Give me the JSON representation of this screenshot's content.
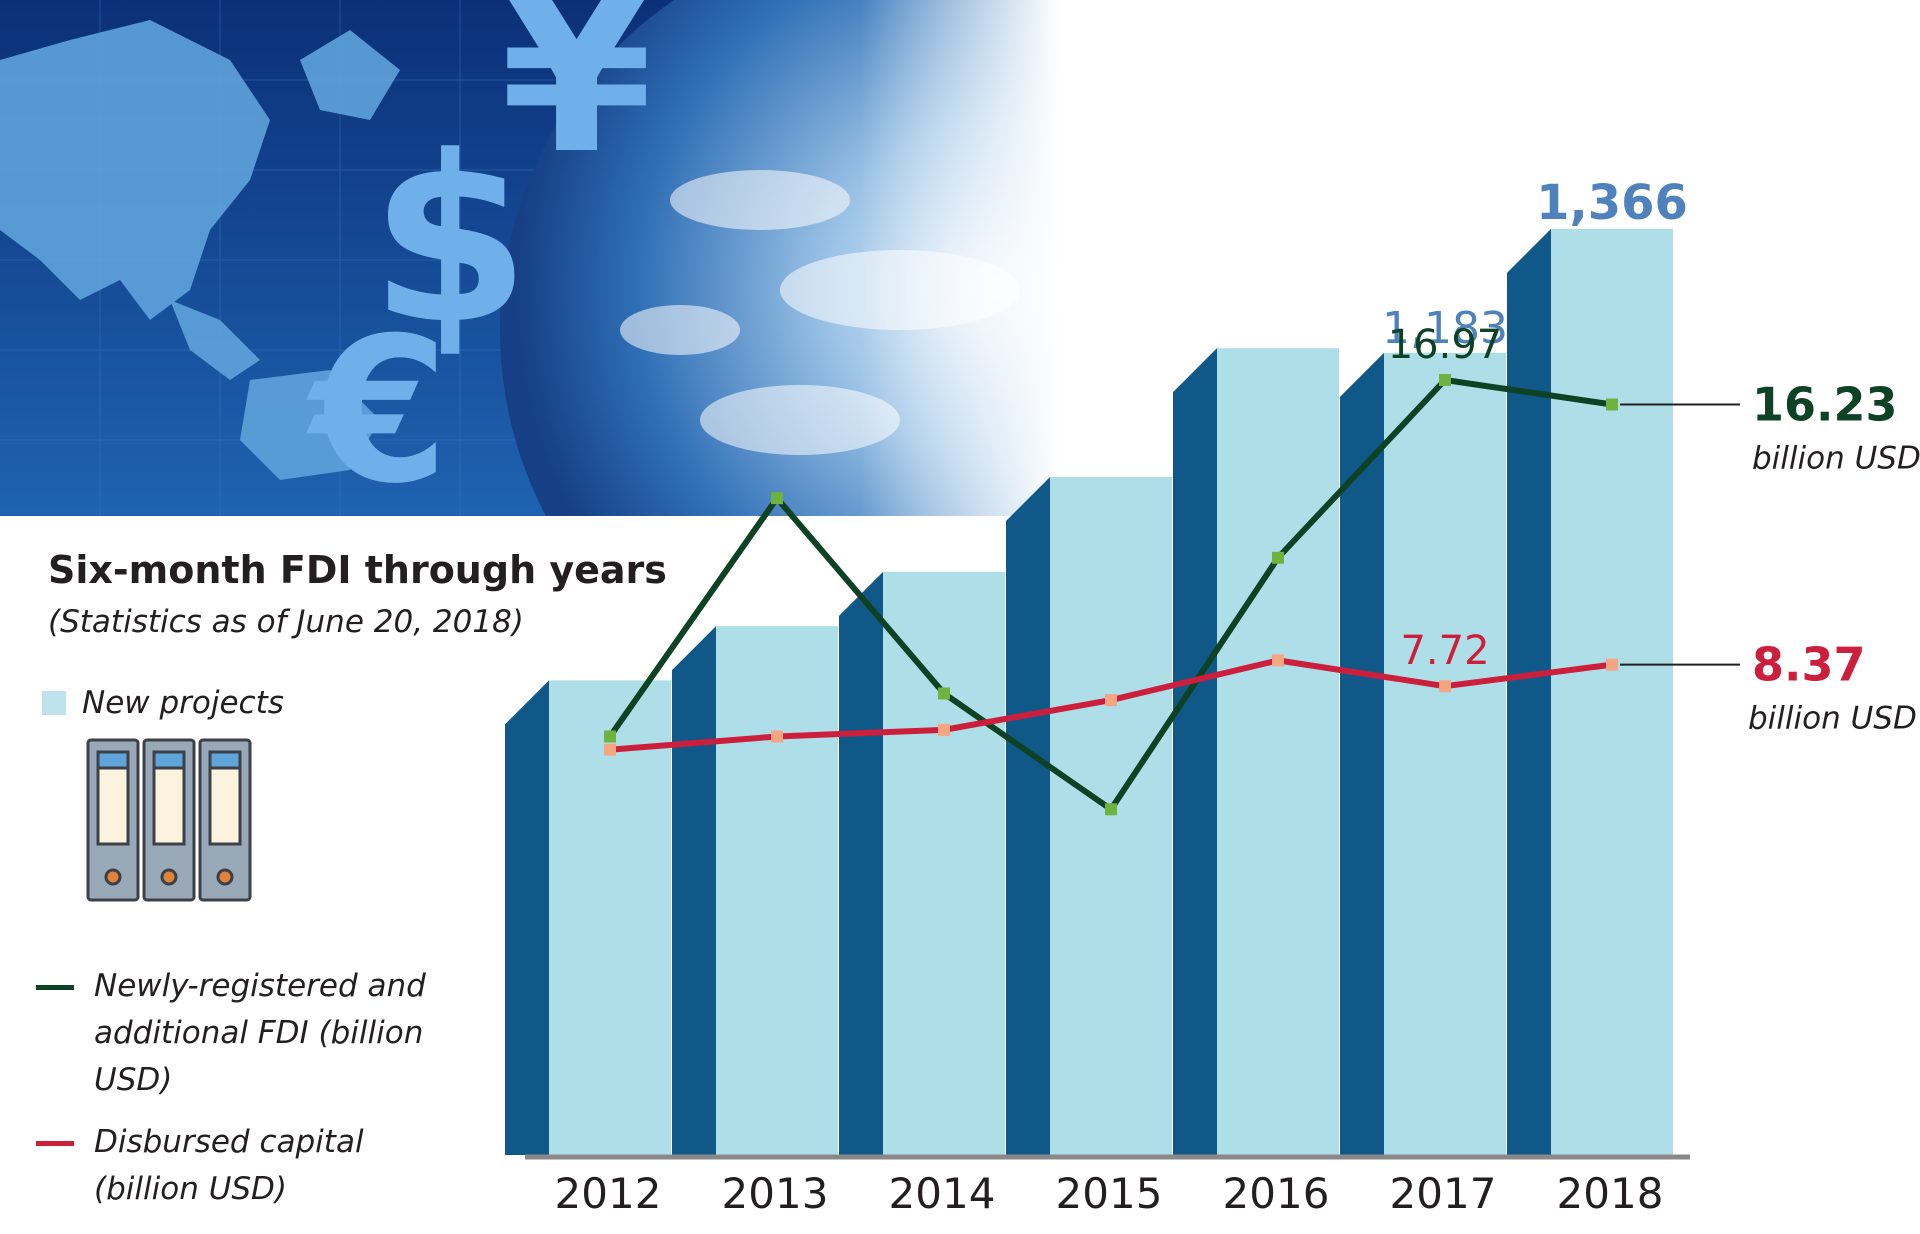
{
  "chart_data": {
    "type": "bar",
    "title": "Six-month FDI through years",
    "subtitle": "(Statistics as of June 20, 2018)",
    "categories": [
      "2012",
      "2013",
      "2014",
      "2015",
      "2016",
      "2017",
      "2018"
    ],
    "bar_series": {
      "name": "New projects",
      "values": [
        700,
        780,
        860,
        1000,
        1190,
        1183,
        1366
      ],
      "labels": [
        "",
        "",
        "",
        "",
        "",
        "1,183",
        "1,366"
      ]
    },
    "line_series": [
      {
        "name": "Newly-registered and additional FDI (billion USD)",
        "values": [
          6.2,
          13.4,
          7.5,
          4.0,
          11.6,
          16.97,
          16.23
        ],
        "labels": [
          "",
          "",
          "",
          "",
          "",
          "16.97",
          ""
        ]
      },
      {
        "name": "Disbursed capital (billion USD)",
        "values": [
          5.8,
          6.2,
          6.4,
          7.3,
          8.5,
          7.72,
          8.37
        ],
        "labels": [
          "",
          "",
          "",
          "",
          "",
          "7.72",
          ""
        ]
      }
    ],
    "callouts": [
      {
        "value": "16.23",
        "unit": "billion USD"
      },
      {
        "value": "8.37",
        "unit": "billion USD"
      }
    ]
  },
  "colors": {
    "bar_front": "#aedfe8",
    "bar_side": "#0f5888",
    "new_projects_label": "#4f81bd",
    "fdi_line": "#0e4225",
    "fdi_marker": "#6db33f",
    "disbursed_line": "#cc1f3b",
    "disbursed_marker": "#f4a582",
    "axis": "#888888",
    "banner_top": "#0c3a84",
    "banner_bottom": "#1d5aa6"
  },
  "icons": [
    "binder-folders-icon",
    "globe-image",
    "currency-symbols-image"
  ]
}
